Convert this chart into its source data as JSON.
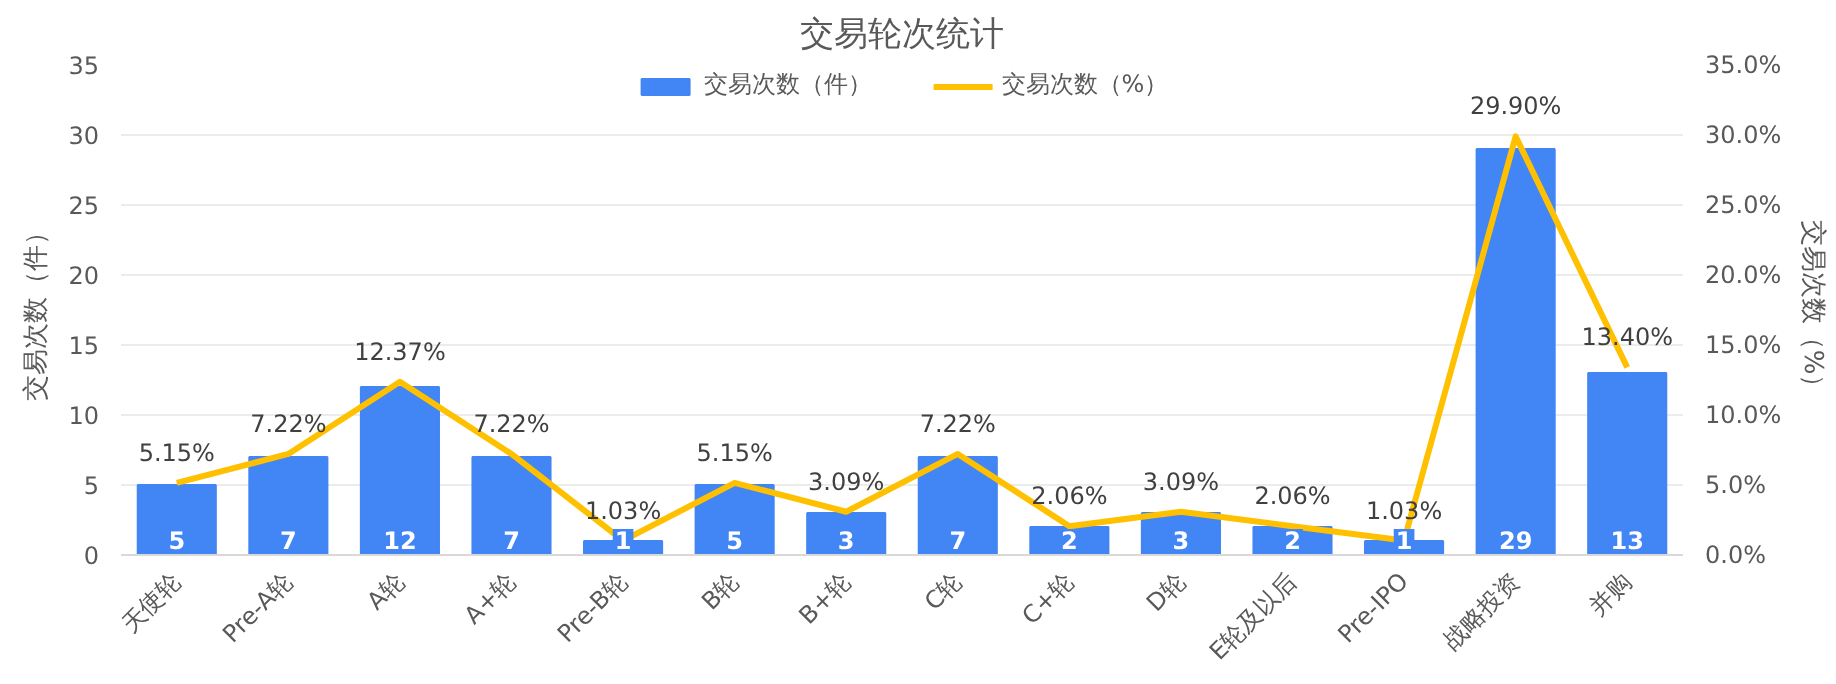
{
  "chart_data": {
    "type": "bar",
    "title": "交易轮次统计",
    "ylabel": "交易次数（件）",
    "y2label": "交易次数（%）",
    "categories": [
      "天使轮",
      "Pre-A轮",
      "A轮",
      "A+轮",
      "Pre-B轮",
      "B轮",
      "B+轮",
      "C轮",
      "C+轮",
      "D轮",
      "E轮及以后",
      "Pre-IPO",
      "战略投资",
      "并购"
    ],
    "series": [
      {
        "name": "交易次数（件）",
        "color": "#4285f4",
        "values": [
          5,
          7,
          12,
          7,
          1,
          5,
          3,
          7,
          2,
          3,
          2,
          1,
          29,
          13
        ],
        "value_labels": [
          "5",
          "7",
          "12",
          "7",
          "1",
          "5",
          "3",
          "7",
          "2",
          "3",
          "2",
          "1",
          "29",
          "13"
        ]
      },
      {
        "name": "交易次数（%）",
        "type": "line",
        "axis": "y2",
        "color": "#ffc000",
        "values": [
          5.15,
          7.22,
          12.37,
          7.22,
          1.03,
          5.15,
          3.09,
          7.22,
          2.06,
          3.09,
          2.06,
          1.03,
          29.9,
          13.4
        ],
        "value_labels": [
          "5.15%",
          "7.22%",
          "12.37%",
          "7.22%",
          "1.03%",
          "5.15%",
          "3.09%",
          "7.22%",
          "2.06%",
          "3.09%",
          "2.06%",
          "1.03%",
          "29.90%",
          "13.40%"
        ]
      }
    ],
    "ylim": [
      0,
      35
    ],
    "yticks": [
      0,
      5,
      10,
      15,
      20,
      25,
      30,
      35
    ],
    "y2lim": [
      0,
      35
    ],
    "y2ticks": [
      {
        "value": 0,
        "label": "0.0%"
      },
      {
        "value": 5,
        "label": "5.0%"
      },
      {
        "value": 10,
        "label": "10.0%"
      },
      {
        "value": 15,
        "label": "15.0%"
      },
      {
        "value": 20,
        "label": "20.0%"
      },
      {
        "value": 25,
        "label": "25.0%"
      },
      {
        "value": 30,
        "label": "30.0%"
      },
      {
        "value": 35,
        "label": "35.0%"
      }
    ],
    "grid": "y",
    "legend": "top",
    "marker": "none"
  }
}
